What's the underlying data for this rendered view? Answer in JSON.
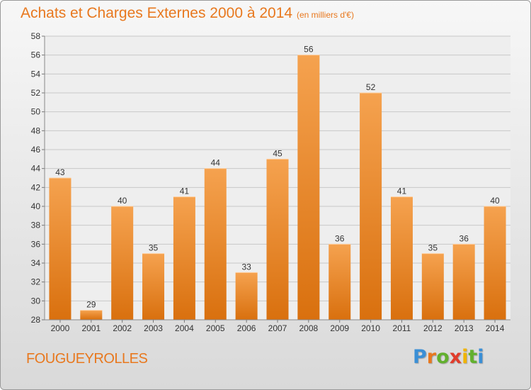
{
  "title": "Achats et Charges Externes 2000 à 2014",
  "subtitle": "(en milliers d'€)",
  "place": "FOUGUEYROLLES",
  "logo": {
    "letters": [
      "P",
      "r",
      "o",
      "x",
      "i",
      "t",
      "i"
    ],
    "colors": [
      "#3a8fd6",
      "#e8781e",
      "#62b02e",
      "#e03c2b",
      "#f0b400",
      "#62b02e",
      "#3a8fd6"
    ]
  },
  "colors": {
    "accent": "#e8781e",
    "bar_top": "#f5a24f",
    "bar_bottom": "#d9700e",
    "grid": "#c8c8c8"
  },
  "chart_data": {
    "type": "bar",
    "categories": [
      "2000",
      "2001",
      "2002",
      "2003",
      "2004",
      "2005",
      "2006",
      "2007",
      "2008",
      "2009",
      "2010",
      "2011",
      "2012",
      "2013",
      "2014"
    ],
    "values": [
      43,
      29,
      40,
      35,
      41,
      44,
      33,
      45,
      56,
      36,
      52,
      41,
      35,
      36,
      40
    ],
    "ylim": [
      28,
      58
    ],
    "yticks": [
      28,
      30,
      32,
      34,
      36,
      38,
      40,
      42,
      44,
      46,
      48,
      50,
      52,
      54,
      56,
      58
    ],
    "grid": true,
    "data_labels": true
  }
}
